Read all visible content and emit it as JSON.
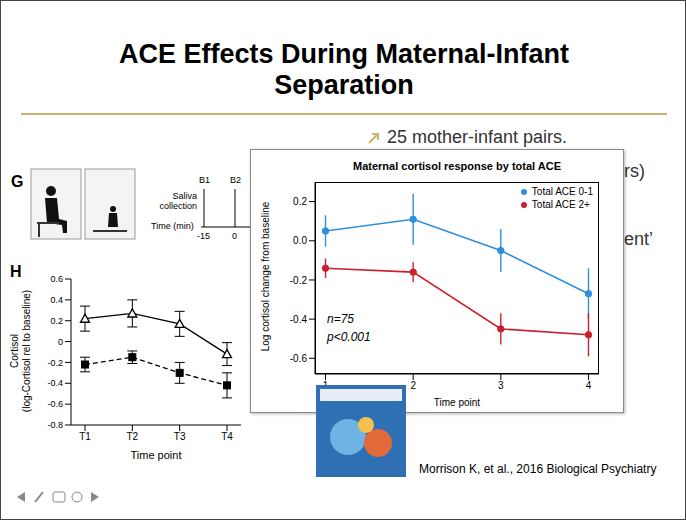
{
  "slide": {
    "title": [
      "ACE Effects During Maternal-Infant",
      "Separation"
    ],
    "bullets": [
      "25 mother-infant pairs.",
      "rs)",
      "ent’"
    ],
    "citation": "Morrison K, et al., 2016 Biological Psychiatry",
    "panel_g": {
      "label": "G",
      "saliva": "Saliva collection",
      "b1": "B1",
      "b2": "B2",
      "time": "Time (min)",
      "t_start": "-15",
      "t_zero": "0"
    }
  },
  "chart_data": [
    {
      "type": "line",
      "title": "Maternal cortisol response by total ACE",
      "x_label": "Time point",
      "y_label": "Log cortisol change from baseline",
      "x": [
        1,
        2,
        3,
        4
      ],
      "xlim": [
        0.88,
        4.12
      ],
      "xticks": [
        1,
        2,
        3,
        4
      ],
      "ylim": [
        -0.68,
        0.3
      ],
      "yticks": [
        -0.6,
        -0.4,
        -0.2,
        {
          "value": 0,
          "label": "0.0"
        },
        0.2
      ],
      "grid": false,
      "legend": "top right",
      "annotations": [
        "n=75",
        "p<0.001"
      ],
      "series": [
        {
          "name": "Total ACE 0-1",
          "color": "#2f8fdc",
          "marker": "circle",
          "line_style": "solid",
          "values": [
            0.05,
            0.11,
            -0.05,
            -0.27
          ],
          "errors": [
            0.08,
            0.13,
            0.11,
            0.13
          ]
        },
        {
          "name": "Total ACE 2+",
          "color": "#cc1f2c",
          "marker": "circle",
          "line_style": "solid",
          "values": [
            -0.14,
            -0.16,
            -0.45,
            -0.48
          ],
          "errors": [
            0.05,
            0.05,
            0.08,
            0.11
          ]
        }
      ]
    },
    {
      "type": "line",
      "label": "H",
      "x_label": "Time point",
      "y_label": [
        "Cortisol",
        "(log-Cortisol rel to baseline)"
      ],
      "categories": [
        "T1",
        "T2",
        "T3",
        "T4"
      ],
      "ylim": [
        -0.8,
        0.6
      ],
      "yticks": [
        -0.8,
        -0.6,
        -0.4,
        -0.2,
        0,
        0.2,
        0.4,
        0.6
      ],
      "grid": false,
      "series": [
        {
          "color": "#000000",
          "marker": "triangle",
          "line_style": "solid",
          "values": [
            0.22,
            0.27,
            0.17,
            -0.12
          ],
          "errors": [
            0.12,
            0.13,
            0.12,
            0.11
          ]
        },
        {
          "color": "#000000",
          "marker": "square",
          "line_style": "dashed",
          "values": [
            -0.22,
            -0.15,
            -0.3,
            -0.42
          ],
          "errors": [
            0.07,
            0.06,
            0.1,
            0.12
          ]
        }
      ]
    }
  ]
}
